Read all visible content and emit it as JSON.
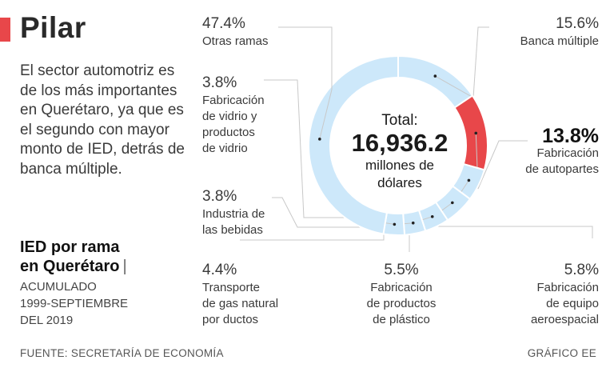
{
  "header": {
    "title": "Pilar",
    "description": "El sector automotriz es de los más importantes en Querétaro, ya que es el segundo con mayor monto de IED, detrás de banca múltiple.",
    "subtitle_line1": "IED por rama",
    "subtitle_line2": "en Querétaro",
    "subtitle_pipe": "|",
    "period_line1": "ACUMULADO",
    "period_line2": "1999-SEPTIEMBRE",
    "period_line3": "DEL 2019"
  },
  "footer": {
    "source": "FUENTE: SECRETARÍA DE ECONOMÍA",
    "credit": "GRÁFICO EE"
  },
  "colors": {
    "accent": "#e8474a",
    "ring": "#cde8fa",
    "highlight": "#e8474a",
    "leader": "#c8c8c8"
  },
  "chart_data": {
    "type": "pie",
    "variant": "donut",
    "title": "IED por rama en Querétaro",
    "total_label": "Total:",
    "total_value": "16,936.2",
    "total_unit_line1": "millones de",
    "total_unit_line2": "dólares",
    "units": "%",
    "slices": [
      {
        "key": "banca",
        "label_lines": [
          "Banca múltiple"
        ],
        "pct_text": "15.6%",
        "value": 15.6,
        "highlight": false
      },
      {
        "key": "autopartes",
        "label_lines": [
          "Fabricación",
          "de autopartes"
        ],
        "pct_text": "13.8%",
        "value": 13.8,
        "highlight": true
      },
      {
        "key": "aeroespacial",
        "label_lines": [
          "Fabricación",
          "de equipo",
          "aeroespacial"
        ],
        "pct_text": "5.8%",
        "value": 5.8,
        "highlight": false
      },
      {
        "key": "plastico",
        "label_lines": [
          "Fabricación",
          "de productos",
          "de plástico"
        ],
        "pct_text": "5.5%",
        "value": 5.5,
        "highlight": false
      },
      {
        "key": "gas",
        "label_lines": [
          "Transporte",
          "de gas natural",
          "por ductos"
        ],
        "pct_text": "4.4%",
        "value": 4.4,
        "highlight": false
      },
      {
        "key": "bebidas",
        "label_lines": [
          "Industria de",
          "las bebidas"
        ],
        "pct_text": "3.8%",
        "value": 3.8,
        "highlight": false
      },
      {
        "key": "vidrio",
        "label_lines": [
          "Fabricación",
          "de vidrio y",
          "productos",
          "de vidrio"
        ],
        "pct_text": "3.8%",
        "value": 3.8,
        "highlight": false
      },
      {
        "key": "otras",
        "label_lines": [
          "Otras ramas"
        ],
        "pct_text": "47.4%",
        "value": 47.4,
        "highlight": false
      }
    ]
  }
}
